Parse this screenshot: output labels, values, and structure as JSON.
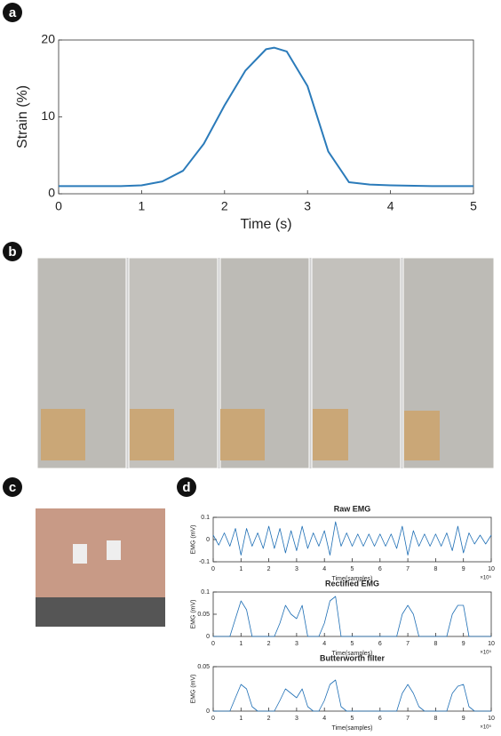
{
  "panel_labels": [
    "a",
    "b",
    "c",
    "d"
  ],
  "chart_data": [
    {
      "type": "line",
      "xlabel": "Time (s)",
      "ylabel": "Strain (%)",
      "color": "#2b7bba",
      "x": [
        0,
        0.25,
        0.5,
        0.75,
        1,
        1.25,
        1.5,
        1.75,
        2,
        2.25,
        2.5,
        2.6,
        2.75,
        3,
        3.25,
        3.5,
        3.75,
        4,
        4.5,
        5
      ],
      "values": [
        1,
        1,
        1,
        1,
        1.1,
        1.6,
        3,
        6.5,
        11.5,
        16,
        18.8,
        19,
        18.5,
        14,
        5.5,
        1.5,
        1.2,
        1.1,
        1,
        1
      ],
      "xlim": [
        0,
        5
      ],
      "ylim": [
        0,
        20
      ],
      "xticks": [
        0,
        1,
        2,
        3,
        4,
        5
      ],
      "yticks": [
        0,
        10,
        20
      ]
    },
    {
      "type": "line",
      "title": "Raw EMG",
      "xlabel": "Time(samples)",
      "ylabel": "EMG (mV)",
      "x_multiplier": "×10⁵",
      "color": "#1f6fb5",
      "x": [
        0,
        0.2,
        0.4,
        0.6,
        0.8,
        1,
        1.2,
        1.4,
        1.6,
        1.8,
        2,
        2.2,
        2.4,
        2.6,
        2.8,
        3,
        3.2,
        3.4,
        3.6,
        3.8,
        4,
        4.2,
        4.4,
        4.6,
        4.8,
        5,
        5.2,
        5.4,
        5.6,
        5.8,
        6,
        6.2,
        6.4,
        6.6,
        6.8,
        7,
        7.2,
        7.4,
        7.6,
        7.8,
        8,
        8.2,
        8.4,
        8.6,
        8.8,
        9,
        9.2,
        9.4,
        9.6,
        9.8,
        10
      ],
      "values": [
        0.02,
        -0.025,
        0.03,
        -0.03,
        0.05,
        -0.07,
        0.05,
        -0.03,
        0.03,
        -0.04,
        0.06,
        -0.04,
        0.05,
        -0.06,
        0.04,
        -0.05,
        0.06,
        -0.04,
        0.03,
        -0.03,
        0.04,
        -0.07,
        0.08,
        -0.03,
        0.03,
        -0.03,
        0.025,
        -0.03,
        0.025,
        -0.03,
        0.025,
        -0.03,
        0.025,
        -0.04,
        0.06,
        -0.07,
        0.04,
        -0.03,
        0.025,
        -0.03,
        0.025,
        -0.03,
        0.03,
        -0.05,
        0.06,
        -0.06,
        0.03,
        -0.02,
        0.02,
        -0.02,
        0.02
      ],
      "xlim": [
        0,
        10
      ],
      "ylim": [
        -0.1,
        0.1
      ],
      "xticks": [
        0,
        1,
        2,
        3,
        4,
        5,
        6,
        7,
        8,
        9,
        10
      ],
      "yticks": [
        -0.1,
        0,
        0.1
      ]
    },
    {
      "type": "line",
      "title": "Rectified EMG",
      "xlabel": "Time(samples)",
      "ylabel": "EMG (mV)",
      "x_multiplier": "×10⁵",
      "color": "#1f6fb5",
      "x": [
        0,
        0.2,
        0.4,
        0.6,
        0.8,
        1,
        1.2,
        1.4,
        1.6,
        1.8,
        2,
        2.2,
        2.4,
        2.6,
        2.8,
        3,
        3.2,
        3.4,
        3.6,
        3.8,
        4,
        4.2,
        4.4,
        4.6,
        4.8,
        5,
        5.2,
        5.4,
        5.6,
        5.8,
        6,
        6.2,
        6.4,
        6.6,
        6.8,
        7,
        7.2,
        7.4,
        7.6,
        7.8,
        8,
        8.2,
        8.4,
        8.6,
        8.8,
        9,
        9.2,
        9.4,
        9.6,
        9.8,
        10
      ],
      "values": [
        0,
        0,
        0,
        0,
        0.04,
        0.08,
        0.06,
        0,
        0,
        0,
        0,
        0,
        0.03,
        0.07,
        0.05,
        0.04,
        0.07,
        0,
        0,
        0,
        0.03,
        0.08,
        0.09,
        0,
        0,
        0,
        0,
        0,
        0,
        0,
        0,
        0,
        0,
        0,
        0.05,
        0.07,
        0.05,
        0,
        0,
        0,
        0,
        0,
        0,
        0.05,
        0.07,
        0.07,
        0,
        0,
        0,
        0,
        0
      ],
      "xlim": [
        0,
        10
      ],
      "ylim": [
        0,
        0.1
      ],
      "xticks": [
        0,
        1,
        2,
        3,
        4,
        5,
        6,
        7,
        8,
        9,
        10
      ],
      "yticks": [
        0,
        0.05,
        0.1
      ]
    },
    {
      "type": "line",
      "title": "Butterworth filter",
      "xlabel": "Time(samples)",
      "ylabel": "EMG (mV)",
      "x_multiplier": "×10⁵",
      "color": "#1f6fb5",
      "x": [
        0,
        0.2,
        0.4,
        0.6,
        0.8,
        1,
        1.2,
        1.4,
        1.6,
        1.8,
        2,
        2.2,
        2.4,
        2.6,
        2.8,
        3,
        3.2,
        3.4,
        3.6,
        3.8,
        4,
        4.2,
        4.4,
        4.6,
        4.8,
        5,
        5.2,
        5.4,
        5.6,
        5.8,
        6,
        6.2,
        6.4,
        6.6,
        6.8,
        7,
        7.2,
        7.4,
        7.6,
        7.8,
        8,
        8.2,
        8.4,
        8.6,
        8.8,
        9,
        9.2,
        9.4,
        9.6,
        9.8,
        10
      ],
      "values": [
        0,
        0,
        0,
        0,
        0.015,
        0.03,
        0.025,
        0.005,
        0,
        0,
        0,
        0,
        0.012,
        0.025,
        0.02,
        0.015,
        0.025,
        0.005,
        0,
        0,
        0.012,
        0.03,
        0.035,
        0.005,
        0,
        0,
        0,
        0,
        0,
        0,
        0,
        0,
        0,
        0,
        0.02,
        0.03,
        0.02,
        0.005,
        0,
        0,
        0,
        0,
        0,
        0.02,
        0.028,
        0.03,
        0.005,
        0,
        0,
        0,
        0
      ],
      "xlim": [
        0,
        10
      ],
      "ylim": [
        0,
        0.05
      ],
      "xticks": [
        0,
        1,
        2,
        3,
        4,
        5,
        6,
        7,
        8,
        9,
        10
      ],
      "yticks": [
        0,
        0.05
      ]
    }
  ]
}
